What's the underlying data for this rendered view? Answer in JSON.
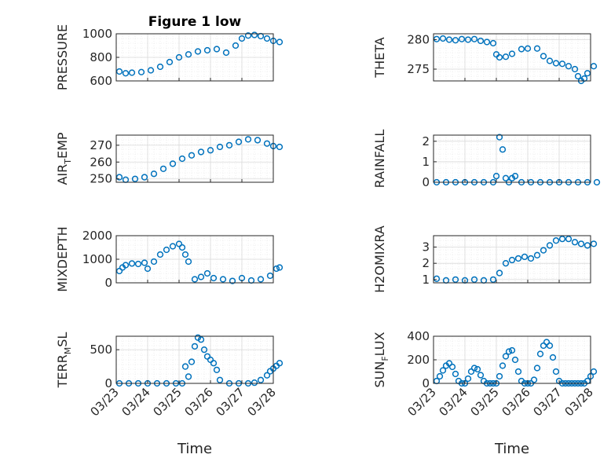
{
  "figure_title": "Figure 1 low",
  "colors": {
    "marker": "#0072BD",
    "axis": "#262626",
    "grid": "#d9d9d9"
  },
  "chart_data": [
    {
      "type": "scatter",
      "ylabel": "PRESSURE",
      "ylim": [
        600,
        1000
      ],
      "yticks": [
        "600",
        "800",
        "1000"
      ],
      "xticks": [],
      "grid": true,
      "x": [
        0.1,
        0.3,
        0.5,
        0.8,
        1.1,
        1.4,
        1.7,
        2.0,
        2.3,
        2.6,
        2.9,
        3.2,
        3.5,
        3.8,
        4.0,
        4.2,
        4.4,
        4.6,
        4.8,
        5.0,
        5.2
      ],
      "values": [
        680,
        665,
        670,
        675,
        690,
        720,
        760,
        800,
        825,
        850,
        860,
        870,
        840,
        900,
        960,
        985,
        990,
        980,
        960,
        940,
        930
      ]
    },
    {
      "type": "scatter",
      "ylabel": "THETA",
      "ylim": [
        273,
        281
      ],
      "yticks": [
        "275",
        "280"
      ],
      "xticks": [],
      "grid": true,
      "x": [
        0.1,
        0.3,
        0.5,
        0.7,
        0.9,
        1.1,
        1.3,
        1.5,
        1.7,
        1.9,
        2.0,
        2.1,
        2.3,
        2.5,
        2.8,
        3.0,
        3.3,
        3.5,
        3.7,
        3.9,
        4.1,
        4.3,
        4.5,
        4.6,
        4.7,
        4.8,
        4.9,
        5.1
      ],
      "values": [
        280.1,
        280.2,
        280.0,
        279.9,
        280.1,
        280.0,
        280.1,
        279.8,
        279.6,
        279.4,
        277.5,
        277.0,
        277.1,
        277.6,
        278.4,
        278.5,
        278.5,
        277.2,
        276.4,
        276.0,
        275.9,
        275.5,
        275.0,
        273.8,
        273.0,
        273.4,
        274.3,
        275.5
      ]
    },
    {
      "type": "scatter",
      "ylabel": "AIR",
      "ylabel_sub": "T",
      "ylabel_rest": "EMP",
      "ylim": [
        248,
        276
      ],
      "yticks": [
        "250",
        "260",
        "270"
      ],
      "xticks": [],
      "grid": true,
      "x": [
        0.1,
        0.3,
        0.6,
        0.9,
        1.2,
        1.5,
        1.8,
        2.1,
        2.4,
        2.7,
        3.0,
        3.3,
        3.6,
        3.9,
        4.2,
        4.5,
        4.8,
        5.0,
        5.2
      ],
      "values": [
        251,
        249.5,
        250,
        251,
        253,
        256,
        259,
        262,
        264,
        266,
        267,
        269,
        270,
        272,
        273.5,
        273,
        271,
        269.5,
        269
      ]
    },
    {
      "type": "scatter",
      "ylabel": "RAINFALL",
      "ylim": [
        0,
        2.3
      ],
      "yticks": [
        "0",
        "1",
        "2"
      ],
      "xticks": [],
      "grid": true,
      "x": [
        0.1,
        0.4,
        0.7,
        1.0,
        1.3,
        1.6,
        1.9,
        2.0,
        2.1,
        2.2,
        2.3,
        2.4,
        2.5,
        2.6,
        2.8,
        3.1,
        3.4,
        3.7,
        4.0,
        4.3,
        4.6,
        4.9,
        5.2
      ],
      "values": [
        0,
        0,
        0,
        0,
        0,
        0,
        0,
        0.3,
        2.2,
        1.6,
        0.2,
        0,
        0.2,
        0.3,
        0,
        0,
        0,
        0,
        0,
        0,
        0,
        0,
        0
      ]
    },
    {
      "type": "scatter",
      "ylabel": "MIXDEPTH",
      "ylim": [
        0,
        2000
      ],
      "yticks": [
        "0",
        "1000",
        "2000"
      ],
      "xticks": [],
      "grid": true,
      "x": [
        0.1,
        0.2,
        0.3,
        0.5,
        0.7,
        0.9,
        1.0,
        1.2,
        1.4,
        1.6,
        1.8,
        2.0,
        2.1,
        2.2,
        2.3,
        2.5,
        2.7,
        2.9,
        3.1,
        3.4,
        3.7,
        4.0,
        4.3,
        4.6,
        4.9,
        5.1,
        5.2
      ],
      "values": [
        500,
        650,
        750,
        820,
        800,
        850,
        600,
        900,
        1200,
        1400,
        1550,
        1650,
        1500,
        1200,
        900,
        150,
        250,
        400,
        200,
        150,
        80,
        200,
        100,
        150,
        300,
        600,
        650
      ]
    },
    {
      "type": "scatter",
      "ylabel": "H2OMIXRA",
      "ylim": [
        0.8,
        3.7
      ],
      "yticks": [
        "1",
        "2",
        "3"
      ],
      "xticks": [],
      "grid": true,
      "x": [
        0.1,
        0.4,
        0.7,
        1.0,
        1.3,
        1.6,
        1.9,
        2.1,
        2.3,
        2.5,
        2.7,
        2.9,
        3.1,
        3.3,
        3.5,
        3.7,
        3.9,
        4.1,
        4.3,
        4.5,
        4.7,
        4.9,
        5.1
      ],
      "values": [
        1.05,
        0.95,
        1.0,
        0.95,
        1.0,
        0.95,
        1.0,
        1.4,
        2.0,
        2.2,
        2.3,
        2.4,
        2.3,
        2.5,
        2.8,
        3.1,
        3.4,
        3.5,
        3.5,
        3.3,
        3.2,
        3.1,
        3.2
      ]
    },
    {
      "type": "scatter",
      "ylabel": "TERR",
      "ylabel_sub": "M",
      "ylabel_rest": "SL",
      "ylim": [
        0,
        700
      ],
      "yticks": [
        "0",
        "500"
      ],
      "xticks": [
        "03/23",
        "03/24",
        "03/25",
        "03/26",
        "03/27",
        "03/28"
      ],
      "xlabel": "Time",
      "grid": true,
      "x": [
        0.1,
        0.4,
        0.7,
        1.0,
        1.3,
        1.6,
        1.9,
        2.1,
        2.2,
        2.3,
        2.4,
        2.5,
        2.6,
        2.7,
        2.8,
        2.9,
        3.0,
        3.1,
        3.2,
        3.3,
        3.6,
        3.9,
        4.2,
        4.4,
        4.6,
        4.8,
        4.9,
        5.0,
        5.1,
        5.2
      ],
      "values": [
        0,
        0,
        0,
        0,
        0,
        0,
        0,
        0,
        250,
        100,
        320,
        550,
        680,
        650,
        500,
        400,
        350,
        300,
        200,
        50,
        0,
        0,
        0,
        10,
        50,
        120,
        180,
        220,
        260,
        300
      ]
    },
    {
      "type": "scatter",
      "ylabel": "SUN",
      "ylabel_sub": "F",
      "ylabel_rest": "LUX",
      "ylim": [
        0,
        400
      ],
      "yticks": [
        "0",
        "200",
        "400"
      ],
      "xticks": [
        "03/23",
        "03/24",
        "03/25",
        "03/26",
        "03/27",
        "03/28"
      ],
      "xlabel": "Time",
      "grid": true,
      "x": [
        0.1,
        0.2,
        0.3,
        0.4,
        0.5,
        0.6,
        0.7,
        0.8,
        0.9,
        1.0,
        1.1,
        1.2,
        1.3,
        1.4,
        1.5,
        1.6,
        1.7,
        1.8,
        1.9,
        2.0,
        2.1,
        2.2,
        2.3,
        2.4,
        2.5,
        2.6,
        2.7,
        2.8,
        2.9,
        3.0,
        3.1,
        3.2,
        3.3,
        3.4,
        3.5,
        3.6,
        3.7,
        3.8,
        3.9,
        4.0,
        4.1,
        4.2,
        4.3,
        4.4,
        4.5,
        4.6,
        4.7,
        4.8,
        4.9,
        5.0,
        5.1
      ],
      "values": [
        20,
        60,
        110,
        150,
        170,
        140,
        80,
        20,
        0,
        0,
        40,
        100,
        130,
        120,
        70,
        20,
        0,
        0,
        0,
        0,
        60,
        150,
        230,
        270,
        280,
        200,
        100,
        20,
        0,
        0,
        0,
        30,
        130,
        250,
        320,
        350,
        320,
        220,
        100,
        20,
        0,
        0,
        0,
        0,
        0,
        0,
        0,
        0,
        20,
        60,
        100
      ]
    }
  ]
}
